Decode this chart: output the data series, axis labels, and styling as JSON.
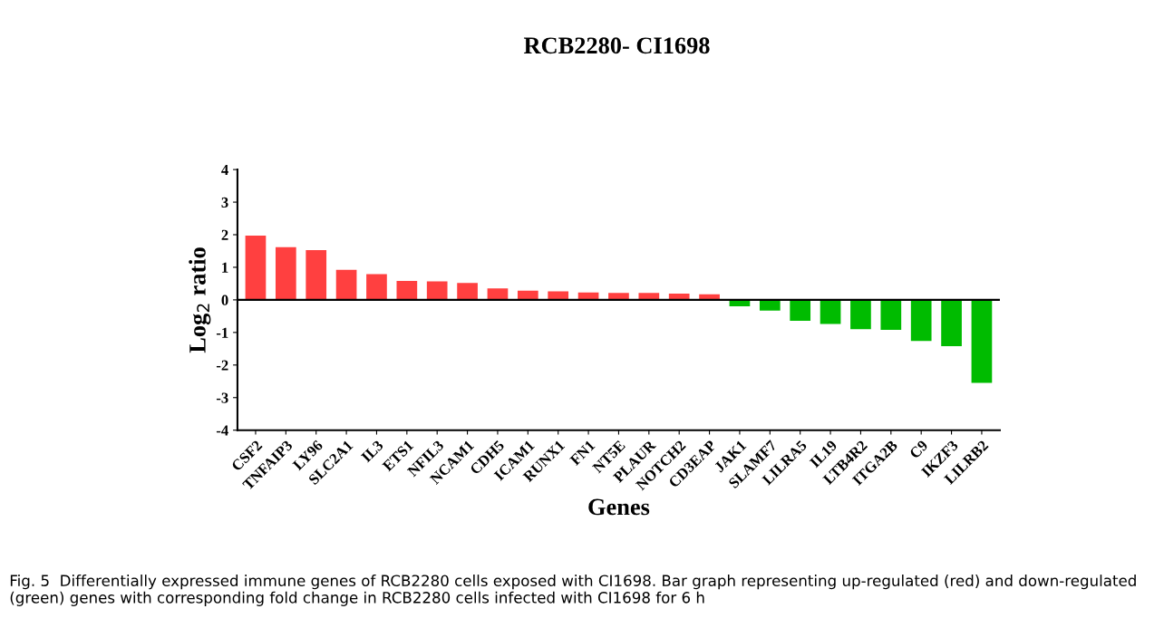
{
  "chart_data": {
    "type": "bar",
    "title": "RCB2280- CI1698",
    "xlabel": "Genes",
    "ylabel": "Log$_{2}$ ratio",
    "categories": [
      "CSF2",
      "TNFAIP3",
      "LY96",
      "SLC2A1",
      "IL3",
      "ETS1",
      "NFIL3",
      "NCAM1",
      "CDH5",
      "ICAM1",
      "RUNX1",
      "FN1",
      "NT5E",
      "PLAUR",
      "NOTCH2",
      "CD3EAP",
      "JAK1",
      "SLAMF7",
      "LILRA5",
      "IL19",
      "LTB4R2",
      "ITGA2B",
      "C9",
      "IKZF3",
      "LILRB2"
    ],
    "values": [
      1.97,
      1.62,
      1.53,
      0.92,
      0.79,
      0.58,
      0.57,
      0.52,
      0.35,
      0.28,
      0.26,
      0.23,
      0.21,
      0.21,
      0.19,
      0.17,
      -0.2,
      -0.33,
      -0.64,
      -0.74,
      -0.9,
      -0.92,
      -1.26,
      -1.42,
      -2.55
    ],
    "colors": [
      "#ff4040",
      "#ff4040",
      "#ff4040",
      "#ff4040",
      "#ff4040",
      "#ff4040",
      "#ff4040",
      "#ff4040",
      "#ff4040",
      "#ff4040",
      "#ff4040",
      "#ff4040",
      "#ff4040",
      "#ff4040",
      "#ff4040",
      "#ff4040",
      "#00bb00",
      "#00bb00",
      "#00bb00",
      "#00bb00",
      "#00bb00",
      "#00bb00",
      "#00bb00",
      "#00bb00",
      "#00bb00"
    ],
    "ylim": [
      -4,
      4
    ],
    "yticks": [
      -4,
      -3,
      -2,
      -1,
      0,
      1,
      2,
      3,
      4
    ],
    "grid": false,
    "legend": false,
    "ref_lines": [
      {
        "axis": "y",
        "value": 0,
        "color": "#000000",
        "line_style": "solid"
      }
    ],
    "annotations": [
      "Fig. 5  Differentially expressed immune genes of RCB2280 cells exposed with CI1698. Bar graph representing up-regulated (red) and down-regulated (green) genes with corresponding fold change in RCB2280 cells infected with CI1698 for 6 h"
    ]
  }
}
